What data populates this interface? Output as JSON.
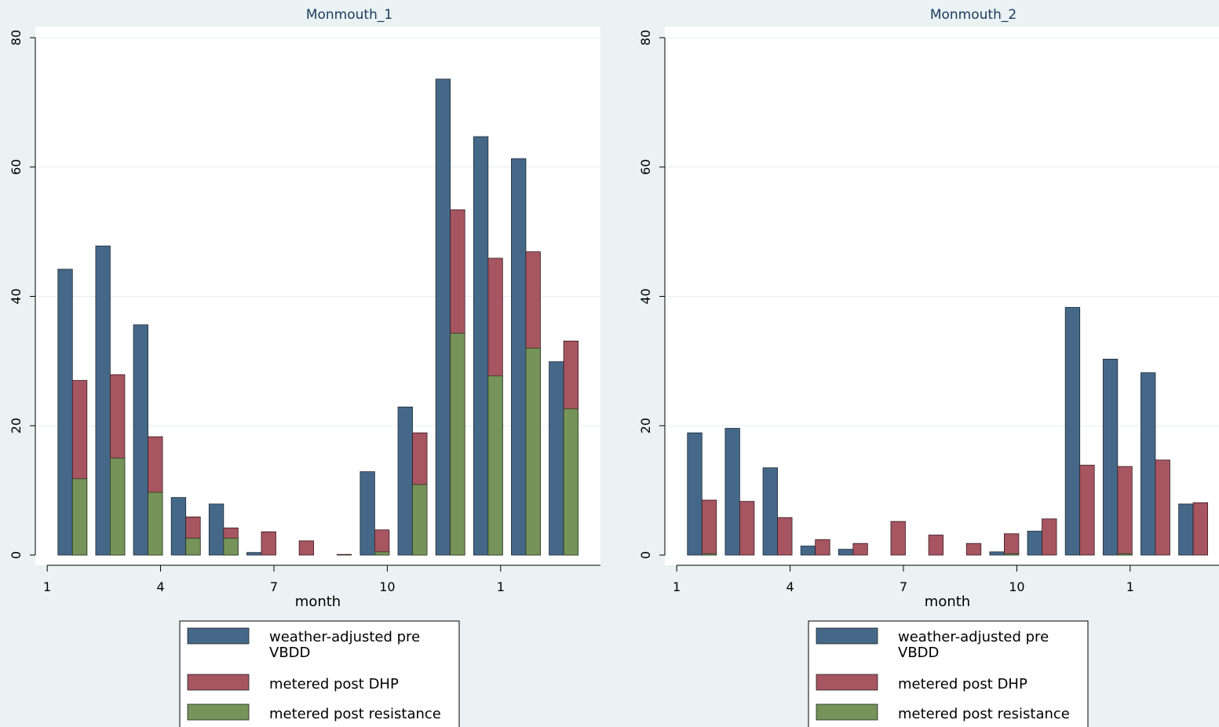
{
  "colors": {
    "background": "#eaf2f3",
    "plot_area": "#ffffff",
    "title": "#1a3a5e",
    "pre_vbdd": "#456888",
    "post_dhp": "#a65561",
    "post_resistance": "#76935a",
    "gridline": "#e6eef0"
  },
  "legend": [
    {
      "line1": "weather-adjusted pre",
      "line2": "VBDD"
    },
    {
      "line1": "metered post DHP",
      "line2": ""
    },
    {
      "line1": "metered post resistance",
      "line2": ""
    }
  ],
  "chart_data": [
    {
      "type": "bar",
      "title": "Monmouth_1",
      "xlabel": "month",
      "ylabel": "",
      "ylim": [
        0,
        80
      ],
      "yticks": [
        0,
        20,
        40,
        60,
        80
      ],
      "xticks": [
        "1",
        "4",
        "7",
        "10",
        "1"
      ],
      "grid": true,
      "legend_position": "bottom",
      "series": [
        {
          "name": "weather-adjusted pre VBDD",
          "values": [
            44.2,
            47.8,
            35.6,
            8.9,
            7.9,
            0.4,
            0,
            0,
            12.9,
            22.9,
            73.6,
            64.7,
            61.3,
            29.9
          ]
        },
        {
          "name": "metered post DHP",
          "values": [
            27.0,
            27.9,
            18.3,
            5.9,
            4.2,
            3.6,
            2.2,
            0.1,
            3.9,
            18.9,
            53.4,
            45.9,
            46.9,
            33.1
          ]
        },
        {
          "name": "metered post resistance",
          "values": [
            11.8,
            15.0,
            9.7,
            2.6,
            2.6,
            0,
            0,
            0,
            0.5,
            10.9,
            34.3,
            27.7,
            32.0,
            22.6
          ]
        }
      ]
    },
    {
      "type": "bar",
      "title": "Monmouth_2",
      "xlabel": "month",
      "ylabel": "",
      "ylim": [
        0,
        80
      ],
      "yticks": [
        0,
        20,
        40,
        60,
        80
      ],
      "xticks": [
        "1",
        "4",
        "7",
        "10",
        "1"
      ],
      "grid": true,
      "legend_position": "bottom",
      "series": [
        {
          "name": "weather-adjusted pre VBDD",
          "values": [
            18.9,
            19.6,
            13.5,
            1.4,
            0.9,
            0,
            0,
            0,
            0.5,
            3.7,
            38.3,
            30.3,
            28.2,
            7.9
          ]
        },
        {
          "name": "metered post DHP",
          "values": [
            8.5,
            8.3,
            5.8,
            2.4,
            1.8,
            5.2,
            3.1,
            1.8,
            3.3,
            5.6,
            13.9,
            13.7,
            14.7,
            8.1
          ]
        },
        {
          "name": "metered post resistance",
          "values": [
            0.2,
            0,
            0,
            0,
            0,
            0,
            0,
            0,
            0.2,
            0,
            0,
            0.2,
            0,
            0
          ]
        }
      ]
    }
  ]
}
